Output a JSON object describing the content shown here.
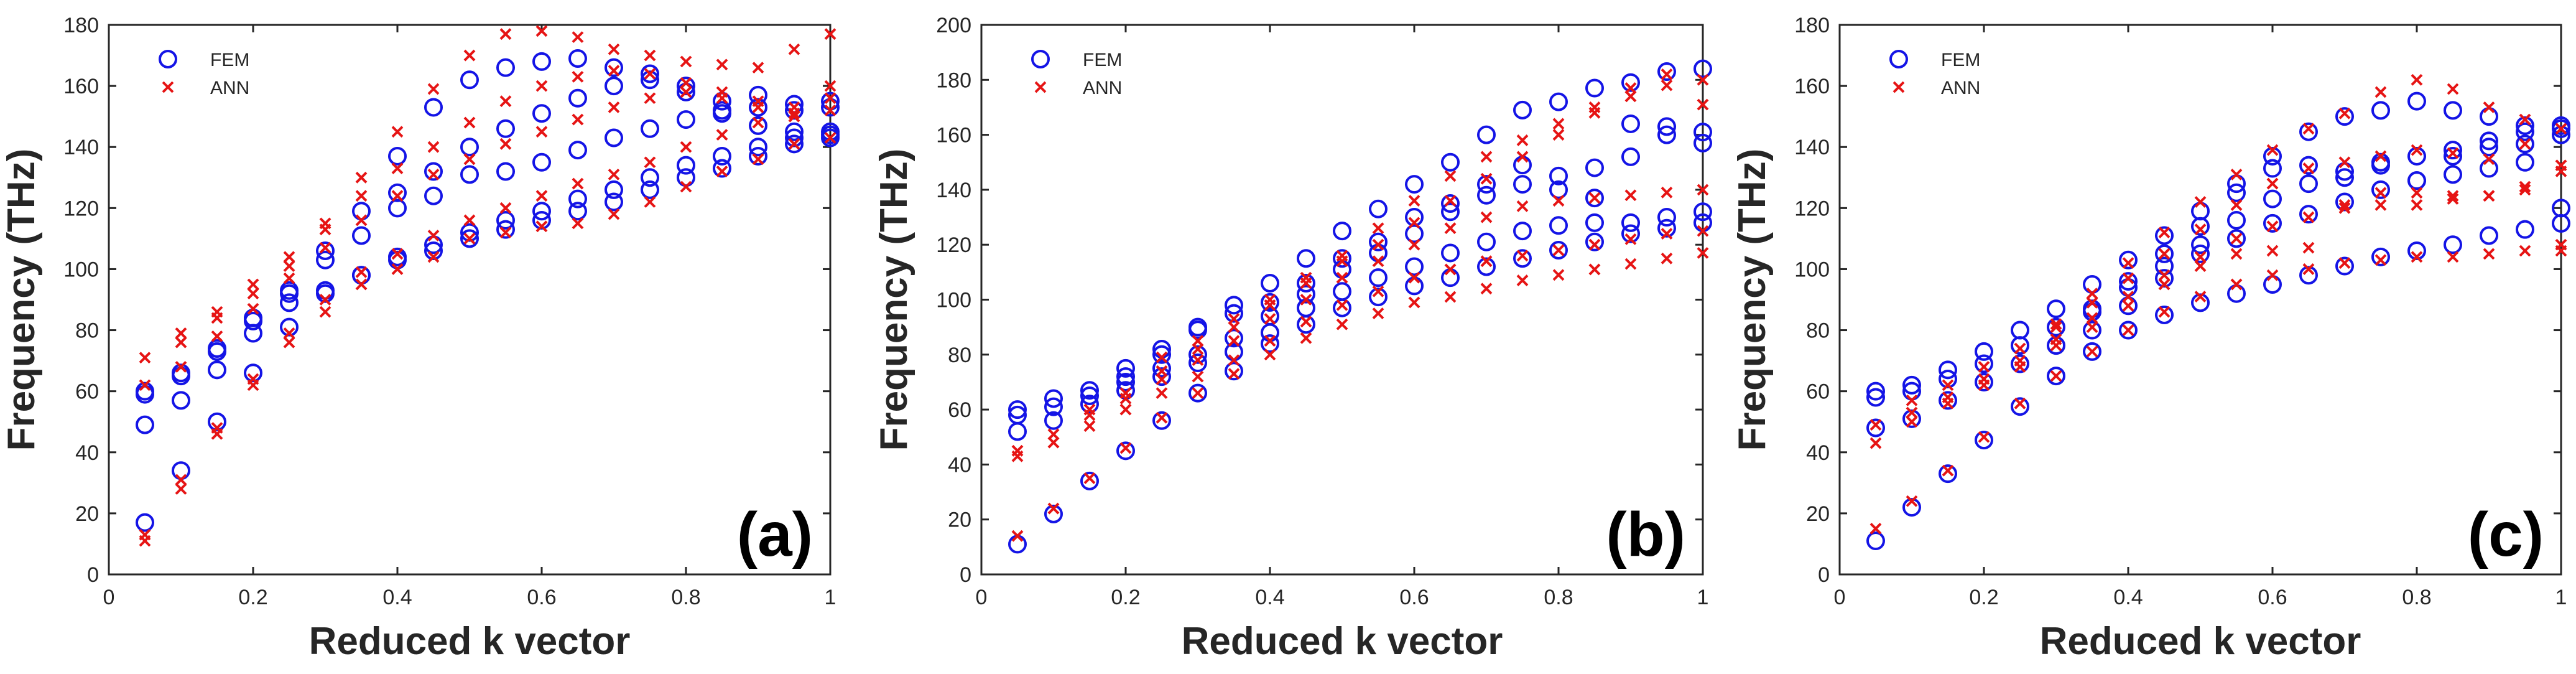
{
  "figure": {
    "panel_labels": [
      "(a)",
      "(b)",
      "(c)"
    ]
  },
  "colors": {
    "fem": "#1414e6",
    "ann": "#e61414",
    "axis": "#262626",
    "tick_text": "#262626",
    "label_text": "#262626"
  },
  "chart_data": [
    {
      "type": "scatter",
      "panel": "(a)",
      "xlabel": "Reduced k vector",
      "ylabel": "Frequency (THz)",
      "xlim": [
        0,
        1
      ],
      "ylim": [
        0,
        180
      ],
      "xticks": [
        0,
        0.2,
        0.4,
        0.6,
        0.8,
        1
      ],
      "yticks": [
        0,
        20,
        40,
        60,
        80,
        100,
        120,
        140,
        160,
        180
      ],
      "xtick_labels": [
        "0",
        "0.2",
        "0.4",
        "0.6",
        "0.8",
        "1"
      ],
      "ytick_labels": [
        "0",
        "20",
        "40",
        "60",
        "80",
        "100",
        "120",
        "140",
        "160",
        "180"
      ],
      "legend": {
        "position": "top-left",
        "entries": [
          "FEM",
          "ANN"
        ]
      },
      "x": [
        0.05,
        0.1,
        0.15,
        0.2,
        0.25,
        0.3,
        0.35,
        0.4,
        0.45,
        0.5,
        0.55,
        0.6,
        0.65,
        0.7,
        0.75,
        0.8,
        0.85,
        0.9,
        0.95,
        1.0
      ],
      "series": [
        {
          "name": "FEM",
          "marker": "circle",
          "bands": [
            [
              17,
              34,
              50,
              66,
              81,
              92,
              98,
              103,
              106,
              110,
              113,
              116,
              119,
              122,
              126,
              130,
              133,
              137,
              141,
              143
            ],
            [
              49,
              57,
              67,
              79,
              89,
              93,
              98,
              104,
              108,
              112,
              116,
              119,
              123,
              126,
              130,
              134,
              137,
              140,
              143,
              144
            ],
            [
              59,
              65,
              73,
              83,
              92,
              103,
              111,
              120,
              124,
              131,
              132,
              135,
              139,
              143,
              146,
              149,
              151,
              153,
              152,
              153
            ],
            [
              60,
              66,
              74,
              84,
              93,
              106,
              119,
              125,
              132,
              140,
              146,
              151,
              156,
              160,
              162,
              158,
              152,
              147,
              145,
              145
            ],
            [
              null,
              null,
              null,
              null,
              null,
              null,
              null,
              137,
              153,
              162,
              166,
              168,
              169,
              166,
              164,
              160,
              155,
              157,
              154,
              155
            ]
          ]
        },
        {
          "name": "ANN",
          "marker": "x",
          "bands": [
            [
              11,
              28,
              46,
              62,
              76,
              86,
              95,
              100,
              104,
              110,
              112,
              114,
              115,
              118,
              122,
              127,
              132,
              136,
              141,
              143
            ],
            [
              13,
              31,
              48,
              64,
              79,
              90,
              99,
              105,
              111,
              116,
              120,
              124,
              128,
              131,
              135,
              140,
              144,
              148,
              151,
              152
            ],
            [
              62,
              68,
              78,
              87,
              97,
              107,
              116,
              124,
              131,
              136,
              141,
              145,
              149,
              153,
              156,
              158,
              156,
              153,
              150,
              156
            ],
            [
              71,
              76,
              84,
              92,
              101,
              113,
              124,
              133,
              140,
              148,
              155,
              160,
              163,
              165,
              164,
              161,
              158,
              155,
              153,
              160
            ],
            [
              null,
              79,
              86,
              95,
              104,
              115,
              130,
              145,
              159,
              170,
              177,
              178,
              176,
              172,
              170,
              168,
              167,
              166,
              172,
              177
            ]
          ]
        }
      ]
    },
    {
      "type": "scatter",
      "panel": "(b)",
      "xlabel": "Reduced k vector",
      "ylabel": "Frequency (THz)",
      "xlim": [
        0,
        1
      ],
      "ylim": [
        0,
        200
      ],
      "xticks": [
        0,
        0.2,
        0.4,
        0.6,
        0.8,
        1
      ],
      "yticks": [
        0,
        20,
        40,
        60,
        80,
        100,
        120,
        140,
        160,
        180,
        200
      ],
      "xtick_labels": [
        "0",
        "0.2",
        "0.4",
        "0.6",
        "0.8",
        "1"
      ],
      "ytick_labels": [
        "0",
        "20",
        "40",
        "60",
        "80",
        "100",
        "120",
        "140",
        "160",
        "180",
        "200"
      ],
      "legend": {
        "position": "top-left",
        "entries": [
          "FEM",
          "ANN"
        ]
      },
      "x": [
        0.05,
        0.1,
        0.15,
        0.2,
        0.25,
        0.3,
        0.35,
        0.4,
        0.45,
        0.5,
        0.55,
        0.6,
        0.65,
        0.7,
        0.75,
        0.8,
        0.85,
        0.9,
        0.95,
        1.0
      ],
      "series": [
        {
          "name": "FEM",
          "marker": "circle",
          "bands": [
            [
              11,
              22,
              34,
              45,
              56,
              66,
              74,
              84,
              91,
              97,
              101,
              105,
              108,
              112,
              115,
              118,
              121,
              124,
              126,
              128
            ],
            [
              52,
              56,
              62,
              67,
              72,
              77,
              81,
              88,
              97,
              103,
              108,
              112,
              117,
              121,
              125,
              127,
              128,
              128,
              130,
              132
            ],
            [
              58,
              61,
              65,
              70,
              75,
              80,
              86,
              94,
              102,
              111,
              117,
              124,
              132,
              138,
              142,
              140,
              137,
              152,
              160,
              157
            ],
            [
              60,
              64,
              67,
              72,
              80,
              89,
              95,
              99,
              106,
              115,
              121,
              130,
              135,
              142,
              149,
              145,
              148,
              164,
              163,
              161
            ],
            [
              null,
              null,
              null,
              75,
              82,
              90,
              98,
              106,
              115,
              125,
              133,
              142,
              150,
              160,
              169,
              172,
              177,
              179,
              183,
              184
            ]
          ]
        },
        {
          "name": "ANN",
          "marker": "x",
          "bands": [
            [
              14,
              24,
              35,
              46,
              57,
              66,
              73,
              80,
              86,
              91,
              95,
              99,
              101,
              104,
              107,
              109,
              111,
              113,
              115,
              117
            ],
            [
              43,
              48,
              54,
              60,
              66,
              72,
              78,
              85,
              92,
              98,
              103,
              108,
              111,
              114,
              116,
              118,
              120,
              122,
              124,
              125
            ],
            [
              45,
              51,
              58,
              64,
              71,
              78,
              85,
              93,
              100,
              108,
              114,
              120,
              126,
              130,
              134,
              136,
              137,
              138,
              139,
              140
            ],
            [
              null,
              null,
              60,
              66,
              74,
              82,
              90,
              98,
              106,
              114,
              120,
              128,
              136,
              144,
              152,
              160,
              168,
              174,
              178,
              171
            ],
            [
              null,
              null,
              null,
              null,
              79,
              85,
              93,
              100,
              108,
              116,
              126,
              136,
              145,
              152,
              158,
              164,
              170,
              177,
              182,
              180
            ]
          ]
        }
      ]
    },
    {
      "type": "scatter",
      "panel": "(c)",
      "xlabel": "Reduced k vector",
      "ylabel": "Frequency (THz)",
      "xlim": [
        0,
        1
      ],
      "ylim": [
        0,
        180
      ],
      "xticks": [
        0,
        0.2,
        0.4,
        0.6,
        0.8,
        1
      ],
      "yticks": [
        0,
        20,
        40,
        60,
        80,
        100,
        120,
        140,
        160,
        180
      ],
      "xtick_labels": [
        "0",
        "0.2",
        "0.4",
        "0.6",
        "0.8",
        "1"
      ],
      "ytick_labels": [
        "0",
        "20",
        "40",
        "60",
        "80",
        "100",
        "120",
        "140",
        "160",
        "180"
      ],
      "legend": {
        "position": "top-left",
        "entries": [
          "FEM",
          "ANN"
        ]
      },
      "x": [
        0.05,
        0.1,
        0.15,
        0.2,
        0.25,
        0.3,
        0.35,
        0.4,
        0.45,
        0.5,
        0.55,
        0.6,
        0.65,
        0.7,
        0.75,
        0.8,
        0.85,
        0.9,
        0.95,
        1.0
      ],
      "series": [
        {
          "name": "FEM",
          "marker": "circle",
          "bands": [
            [
              11,
              22,
              33,
              44,
              55,
              65,
              73,
              80,
              85,
              89,
              92,
              95,
              98,
              101,
              104,
              106,
              108,
              111,
              113,
              115
            ],
            [
              48,
              51,
              57,
              63,
              69,
              75,
              80,
              88,
              97,
              105,
              110,
              115,
              118,
              122,
              126,
              129,
              131,
              133,
              135,
              120
            ],
            [
              58,
              60,
              64,
              69,
              75,
              81,
              87,
              94,
              101,
              108,
              116,
              123,
              128,
              132,
              134,
              137,
              139,
              140,
              141,
              144
            ],
            [
              60,
              62,
              67,
              73,
              80,
              87,
              95,
              103,
              111,
              119,
              128,
              137,
              145,
              150,
              152,
              155,
              152,
              150,
              147,
              146
            ],
            [
              null,
              null,
              null,
              null,
              null,
              null,
              86,
              96,
              105,
              114,
              125,
              133,
              134,
              130,
              135,
              129,
              137,
              142,
              145,
              147
            ]
          ]
        },
        {
          "name": "ANN",
          "marker": "x",
          "bands": [
            [
              15,
              24,
              34,
              45,
              56,
              65,
              73,
              80,
              86,
              91,
              95,
              98,
              100,
              102,
              103,
              104,
              104,
              105,
              106,
              106
            ],
            [
              43,
              50,
              56,
              62,
              68,
              75,
              81,
              88,
              95,
              101,
              105,
              106,
              107,
              120,
              121,
              121,
              123,
              124,
              126,
              108
            ],
            [
              49,
              53,
              58,
              64,
              70,
              77,
              84,
              91,
              98,
              104,
              110,
              114,
              117,
              121,
              125,
              125,
              124,
              124,
              127,
              132
            ],
            [
              null,
              57,
              62,
              68,
              74,
              81,
              89,
              97,
              105,
              113,
              121,
              128,
              133,
              135,
              137,
              139,
              138,
              136,
              141,
              146
            ],
            [
              null,
              null,
              null,
              null,
              null,
              82,
              92,
              102,
              112,
              122,
              131,
              139,
              146,
              151,
              158,
              162,
              159,
              153,
              149,
              134
            ]
          ]
        }
      ]
    }
  ]
}
